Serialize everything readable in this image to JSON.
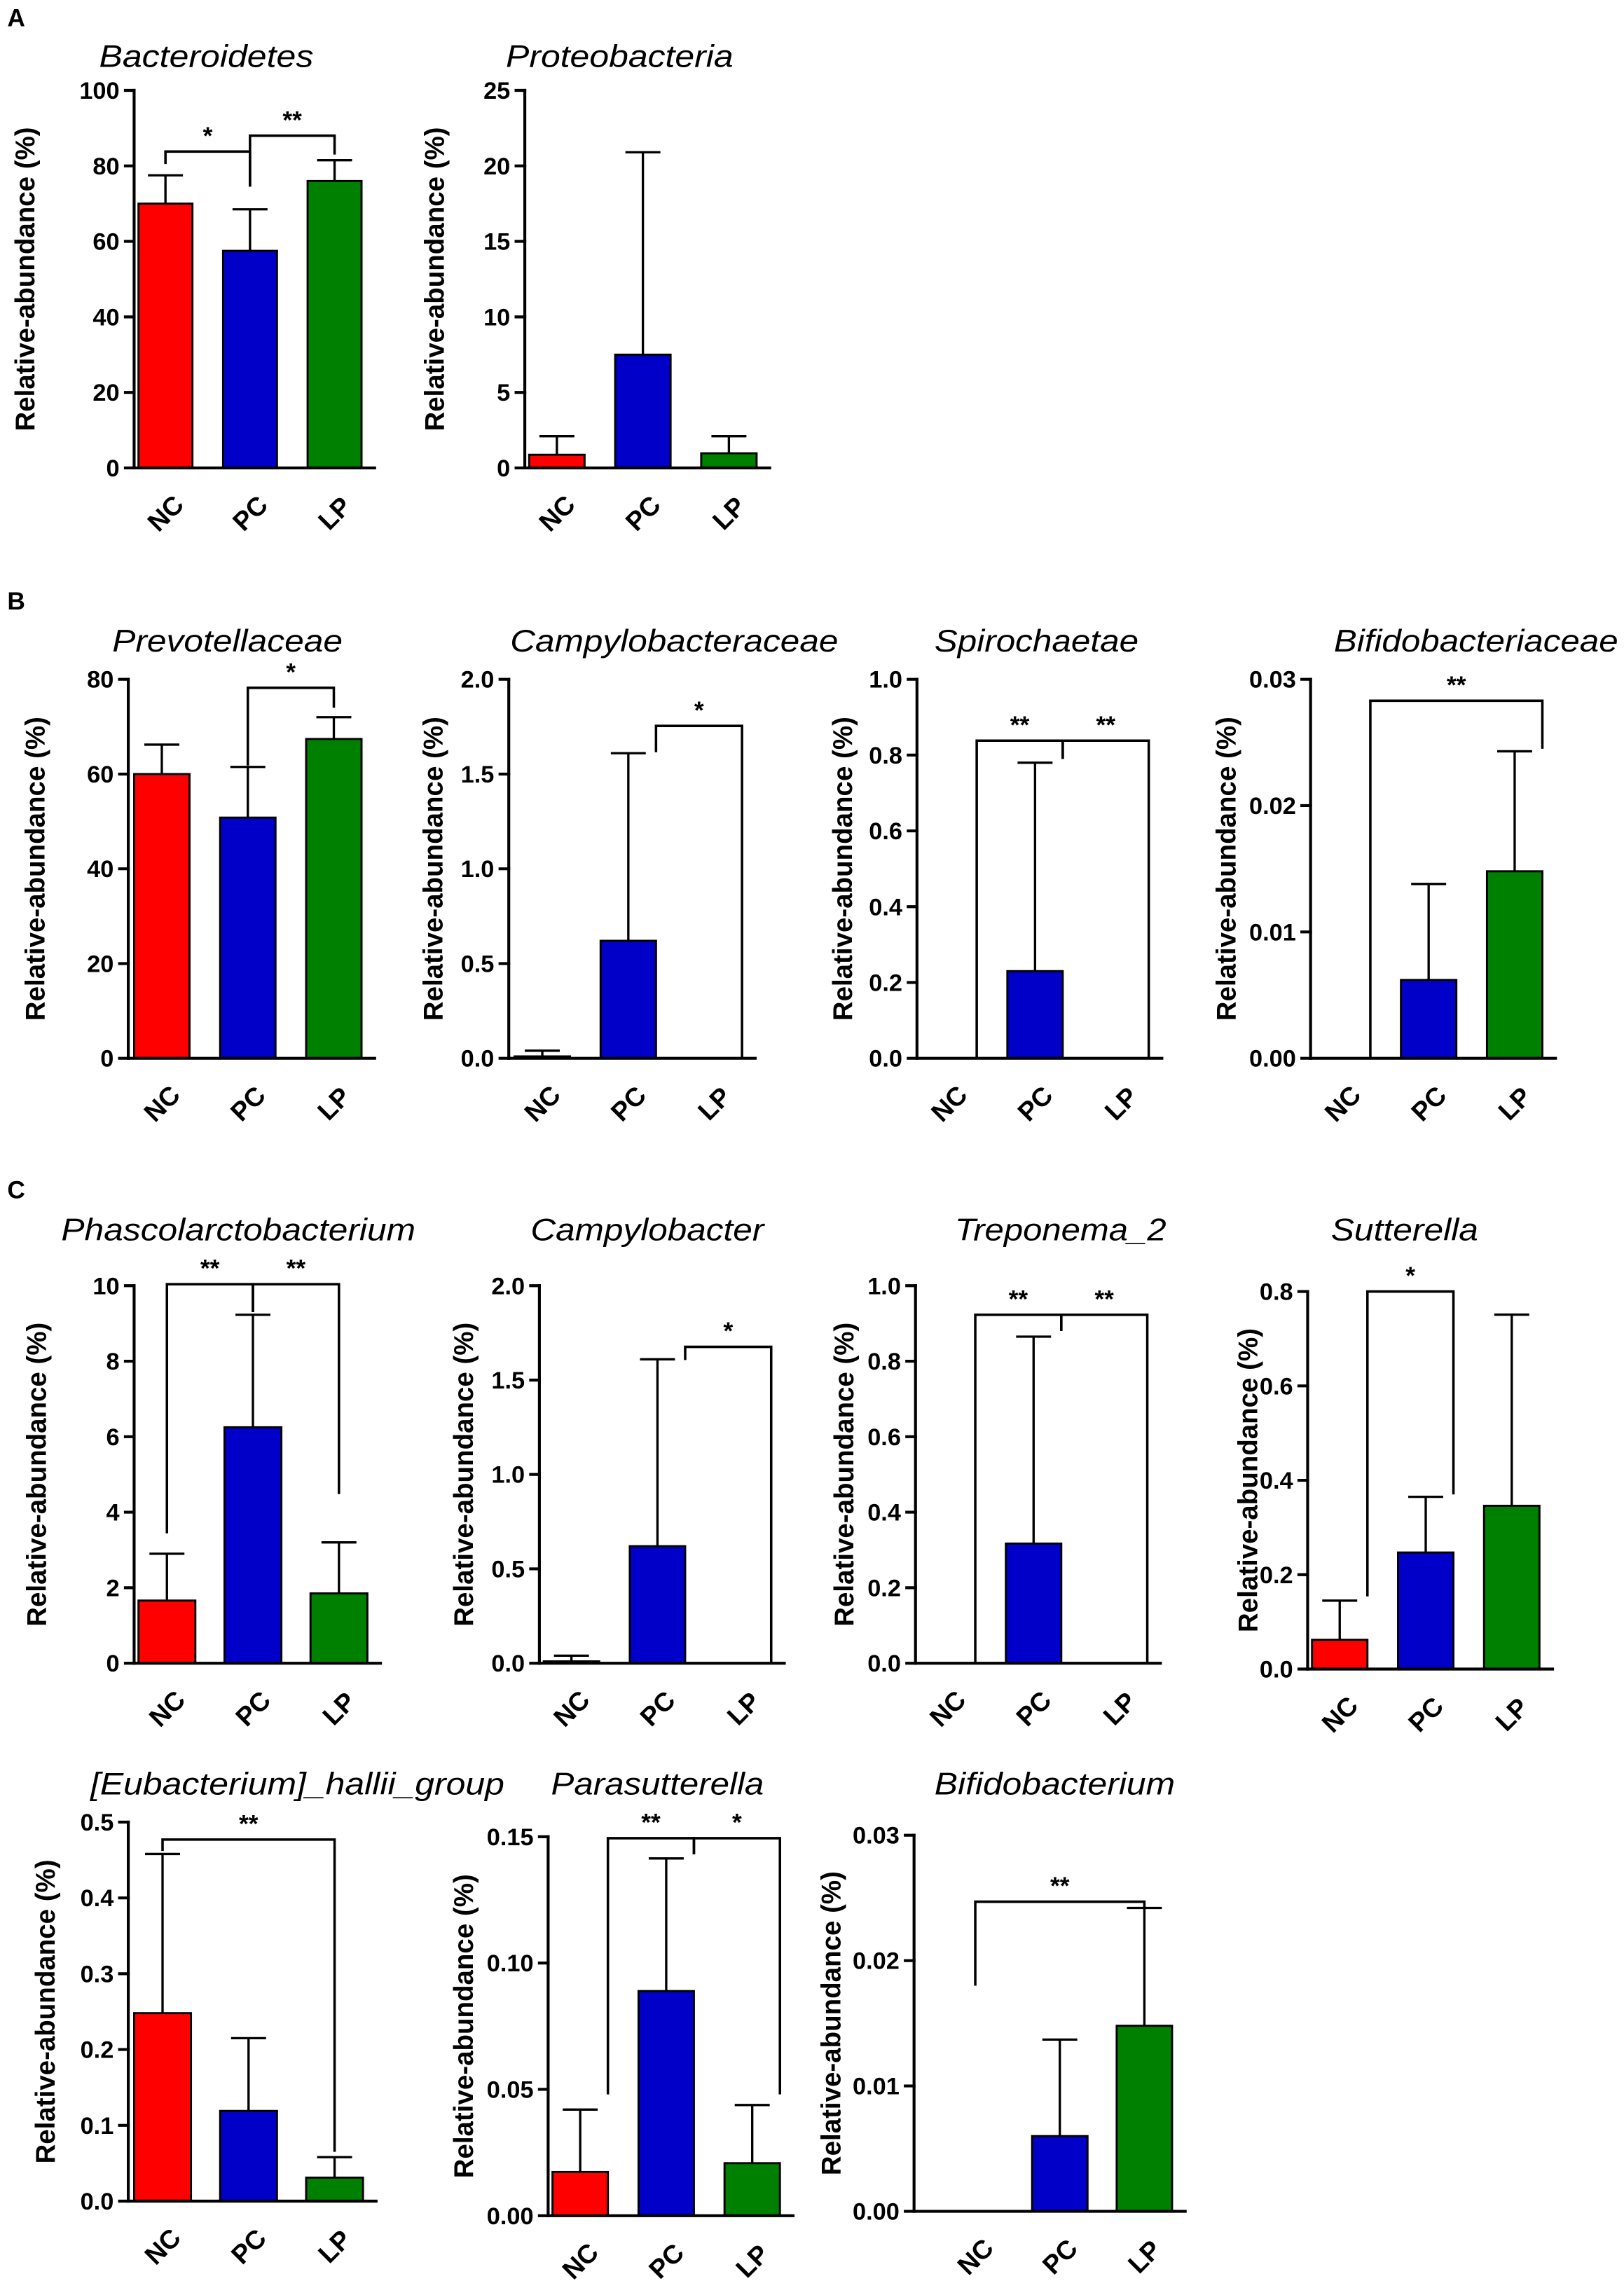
{
  "panel_labels": {
    "a": "A",
    "b": "B",
    "c": "C"
  },
  "colors": {
    "NC": "#ff0000",
    "PC": "#0000c8",
    "LP": "#008000"
  },
  "chart_data": [
    {
      "type": "bar",
      "panel": "A",
      "title": "Bacteroidetes",
      "xlabel": "",
      "ylabel": "Relative-abundance (%)",
      "categories": [
        "NC",
        "PC",
        "LP"
      ],
      "values": [
        70,
        57.5,
        76
      ],
      "error_top": [
        77.5,
        68.5,
        81.5
      ],
      "ylim": [
        0,
        100
      ],
      "yticks": [
        0,
        20,
        40,
        60,
        80,
        100
      ],
      "ytick_labels": [
        "0",
        "20",
        "40",
        "60",
        "80",
        "100"
      ],
      "significance": [
        {
          "from": "NC",
          "to": "PC",
          "label": "*",
          "level": 83.8,
          "from_end": 80.5,
          "to_end": 74.5
        },
        {
          "from": "PC",
          "to": "LP",
          "label": "**",
          "level": 88,
          "from_end": 74.5,
          "to_end": 83
        }
      ]
    },
    {
      "type": "bar",
      "panel": "A",
      "title": "Proteobacteria",
      "xlabel": "",
      "ylabel": "Relative-abundance (%)",
      "categories": [
        "NC",
        "PC",
        "LP"
      ],
      "values": [
        0.87,
        7.5,
        0.97
      ],
      "error_top": [
        2.1,
        20.9,
        2.1
      ],
      "ylim": [
        0,
        25
      ],
      "yticks": [
        0,
        5,
        10,
        15,
        20,
        25
      ],
      "ytick_labels": [
        "0",
        "5",
        "10",
        "15",
        "20",
        "25"
      ],
      "significance": []
    },
    {
      "type": "bar",
      "panel": "B",
      "title": "Prevotellaceae",
      "xlabel": "",
      "ylabel": "Relative-abundance (%)",
      "categories": [
        "NC",
        "PC",
        "LP"
      ],
      "values": [
        60,
        50.8,
        67.4
      ],
      "error_top": [
        66.2,
        61.5,
        72
      ],
      "ylim": [
        0,
        80
      ],
      "yticks": [
        0,
        20,
        40,
        60,
        80
      ],
      "ytick_labels": [
        "0",
        "20",
        "40",
        "60",
        "80"
      ],
      "significance": [
        {
          "from": "PC",
          "to": "LP",
          "label": "*",
          "level": 78.2,
          "from_end": 61.8,
          "to_end": 74
        }
      ]
    },
    {
      "type": "bar",
      "panel": "B",
      "title": "Campylobacteraceae",
      "xlabel": "",
      "ylabel": "Relative-abundance (%)",
      "categories": [
        "NC",
        "PC",
        "LP"
      ],
      "values": [
        0.01,
        0.62,
        0
      ],
      "error_top": [
        0.04,
        1.61,
        0
      ],
      "ylim": [
        0,
        2
      ],
      "yticks": [
        0,
        0.5,
        1,
        1.5,
        2
      ],
      "ytick_labels": [
        "0.0",
        "0.5",
        "1.0",
        "1.5",
        "2.0"
      ],
      "significance": [
        {
          "from": "PC",
          "to": "LP",
          "label": "*",
          "level": 1.754,
          "from_end": 1.615,
          "to_end": 0
        }
      ]
    },
    {
      "type": "bar",
      "panel": "B",
      "title": "Spirochaetae",
      "xlabel": "",
      "ylabel": "Relative-abundance (%)",
      "categories": [
        "NC",
        "PC",
        "LP"
      ],
      "values": [
        0,
        0.23,
        0
      ],
      "error_top": [
        0,
        0.78,
        0
      ],
      "ylim": [
        0,
        1
      ],
      "yticks": [
        0,
        0.2,
        0.4,
        0.6,
        0.8,
        1
      ],
      "ytick_labels": [
        "0.0",
        "0.2",
        "0.4",
        "0.6",
        "0.8",
        "1.0"
      ],
      "significance": [
        {
          "from": "NC",
          "to": "PC",
          "label": "**",
          "level": 0.838,
          "from_end": 0,
          "to_end": 0.79
        },
        {
          "from": "PC",
          "to": "LP",
          "label": "**",
          "level": 0.838,
          "from_end": 0.79,
          "to_end": 0
        }
      ]
    },
    {
      "type": "bar",
      "panel": "B",
      "title": "Bifidobacteriaceae",
      "xlabel": "",
      "ylabel": "Relative-abundance (%)",
      "categories": [
        "NC",
        "PC",
        "LP"
      ],
      "values": [
        0,
        0.0062,
        0.0148
      ],
      "error_top": [
        0,
        0.0138,
        0.0243
      ],
      "ylim": [
        0,
        0.03
      ],
      "yticks": [
        0,
        0.01,
        0.02,
        0.03
      ],
      "ytick_labels": [
        "0.00",
        "0.01",
        "0.02",
        "0.03"
      ],
      "significance": [
        {
          "from": "NC",
          "to": "LP",
          "label": "**",
          "level": 0.0283,
          "from_end": 0,
          "to_end": 0.0245
        }
      ]
    },
    {
      "type": "bar",
      "panel": "C",
      "title": "Phascolarctobacterium",
      "xlabel": "",
      "ylabel": "Relative-abundance (%)",
      "categories": [
        "NC",
        "PC",
        "LP"
      ],
      "values": [
        1.66,
        6.25,
        1.85
      ],
      "error_top": [
        2.9,
        9.23,
        3.2
      ],
      "ylim": [
        0,
        10
      ],
      "yticks": [
        0,
        2,
        4,
        6,
        8,
        10
      ],
      "ytick_labels": [
        "0",
        "2",
        "4",
        "6",
        "8",
        "10"
      ],
      "significance": [
        {
          "from": "NC",
          "to": "PC",
          "label": "**",
          "level": 10.04,
          "from_end": 3.44,
          "to_end": 9.3
        },
        {
          "from": "PC",
          "to": "LP",
          "label": "**",
          "level": 10.04,
          "from_end": 9.3,
          "to_end": 4.48
        }
      ]
    },
    {
      "type": "bar",
      "panel": "C",
      "title": "Campylobacter",
      "xlabel": "",
      "ylabel": "Relative-abundance (%)",
      "categories": [
        "NC",
        "PC",
        "LP"
      ],
      "values": [
        0.01,
        0.62,
        0
      ],
      "error_top": [
        0.04,
        1.61,
        0
      ],
      "ylim": [
        0,
        2
      ],
      "yticks": [
        0,
        0.5,
        1,
        1.5,
        2
      ],
      "ytick_labels": [
        "0.0",
        "0.5",
        "1.0",
        "1.5",
        "2.0"
      ],
      "significance": [
        {
          "from": "PC",
          "to": "LP",
          "label": "*",
          "level": 1.676,
          "from_end": 1.606,
          "to_end": 0
        }
      ]
    },
    {
      "type": "bar",
      "panel": "C",
      "title": "Treponema_2",
      "xlabel": "",
      "ylabel": "Relative-abundance (%)",
      "categories": [
        "NC",
        "PC",
        "LP"
      ],
      "values": [
        0,
        0.317,
        0
      ],
      "error_top": [
        0,
        0.865,
        0
      ],
      "ylim": [
        0,
        1
      ],
      "yticks": [
        0,
        0.2,
        0.4,
        0.6,
        0.8,
        1
      ],
      "ytick_labels": [
        "0.0",
        "0.2",
        "0.4",
        "0.6",
        "0.8",
        "1.0"
      ],
      "significance": [
        {
          "from": "NC",
          "to": "PC",
          "label": "**",
          "level": 0.923,
          "from_end": 0,
          "to_end": 0.88
        },
        {
          "from": "PC",
          "to": "LP",
          "label": "**",
          "level": 0.923,
          "from_end": 0.88,
          "to_end": 0
        }
      ]
    },
    {
      "type": "bar",
      "panel": "C",
      "title": "Sutterella",
      "xlabel": "",
      "ylabel": "Relative-abundance (%)",
      "categories": [
        "NC",
        "PC",
        "LP"
      ],
      "values": [
        0.062,
        0.247,
        0.346
      ],
      "error_top": [
        0.145,
        0.365,
        0.751
      ],
      "ylim": [
        0,
        0.8
      ],
      "yticks": [
        0,
        0.2,
        0.4,
        0.6,
        0.8
      ],
      "ytick_labels": [
        "0.0",
        "0.2",
        "0.4",
        "0.6",
        "0.8"
      ],
      "significance": [
        {
          "from": "NC",
          "to": "PC",
          "label": "*",
          "level": 0.8,
          "from_end": 0.154,
          "to_end": 0.37
        }
      ]
    },
    {
      "type": "bar",
      "panel": "C",
      "title": "[Eubacterium]_hallii_group",
      "xlabel": "",
      "ylabel": "Relative-abundance (%)",
      "categories": [
        "NC",
        "PC",
        "LP"
      ],
      "values": [
        0.248,
        0.119,
        0.031
      ],
      "error_top": [
        0.458,
        0.215,
        0.058
      ],
      "ylim": [
        0,
        0.5
      ],
      "yticks": [
        0,
        0.1,
        0.2,
        0.3,
        0.4,
        0.5
      ],
      "ytick_labels": [
        "0.0",
        "0.1",
        "0.2",
        "0.3",
        "0.4",
        "0.5"
      ],
      "significance": [
        {
          "from": "NC",
          "to": "LP",
          "label": "**",
          "level": 0.477,
          "from_end": 0.462,
          "to_end": 0.065
        }
      ]
    },
    {
      "type": "bar",
      "panel": "C",
      "title": "Parasutterella",
      "xlabel": "",
      "ylabel": "Relative-abundance (%)",
      "categories": [
        "NC",
        "PC",
        "LP"
      ],
      "values": [
        0.0173,
        0.0889,
        0.0208
      ],
      "error_top": [
        0.042,
        0.1414,
        0.0438
      ],
      "ylim": [
        0,
        0.15
      ],
      "yticks": [
        0,
        0.05,
        0.1,
        0.15
      ],
      "ytick_labels": [
        "0.00",
        "0.05",
        "0.10",
        "0.15"
      ],
      "significance": [
        {
          "from": "NC",
          "to": "PC",
          "label": "**",
          "level": 0.1494,
          "from_end": 0.048,
          "to_end": 0.143
        },
        {
          "from": "PC",
          "to": "LP",
          "label": "*",
          "level": 0.1494,
          "from_end": 0.143,
          "to_end": 0.048
        }
      ]
    },
    {
      "type": "bar",
      "panel": "C",
      "title": "Bifidobacterium",
      "xlabel": "",
      "ylabel": "Relative-abundance (%)",
      "categories": [
        "NC",
        "PC",
        "LP"
      ],
      "values": [
        0,
        0.006,
        0.0148
      ],
      "error_top": [
        0,
        0.0137,
        0.0242
      ],
      "ylim": [
        0,
        0.03
      ],
      "yticks": [
        0,
        0.01,
        0.02,
        0.03
      ],
      "ytick_labels": [
        "0.00",
        "0.01",
        "0.02",
        "0.03"
      ],
      "significance": [
        {
          "from": "NC",
          "to": "LP",
          "label": "**",
          "level": 0.0247,
          "from_end": 0.018,
          "to_end": 0.0242
        }
      ]
    }
  ]
}
